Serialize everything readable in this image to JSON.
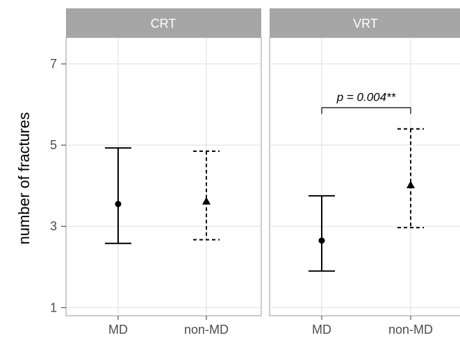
{
  "chart_data": {
    "type": "errorbar",
    "ylabel": "number of fractures",
    "xlabel": "",
    "yticks": [
      1,
      3,
      5,
      7
    ],
    "ylim": [
      0.8,
      7.65
    ],
    "categories": [
      "MD",
      "non-MD"
    ],
    "grid": true,
    "facets": [
      {
        "label": "CRT",
        "points": [
          {
            "category": "MD",
            "mean": 3.55,
            "lower": 2.58,
            "upper": 4.93,
            "marker": "circle",
            "line": "solid"
          },
          {
            "category": "non-MD",
            "mean": 3.62,
            "lower": 2.67,
            "upper": 4.85,
            "marker": "triangle",
            "line": "dashed"
          }
        ]
      },
      {
        "label": "VRT",
        "points": [
          {
            "category": "MD",
            "mean": 2.65,
            "lower": 1.9,
            "upper": 3.75,
            "marker": "circle",
            "line": "solid"
          },
          {
            "category": "non-MD",
            "mean": 4.02,
            "lower": 2.97,
            "upper": 5.4,
            "marker": "triangle",
            "line": "dashed"
          }
        ],
        "annotation": {
          "text": "p = 0.004**",
          "bracket_y": 5.92
        }
      }
    ]
  }
}
